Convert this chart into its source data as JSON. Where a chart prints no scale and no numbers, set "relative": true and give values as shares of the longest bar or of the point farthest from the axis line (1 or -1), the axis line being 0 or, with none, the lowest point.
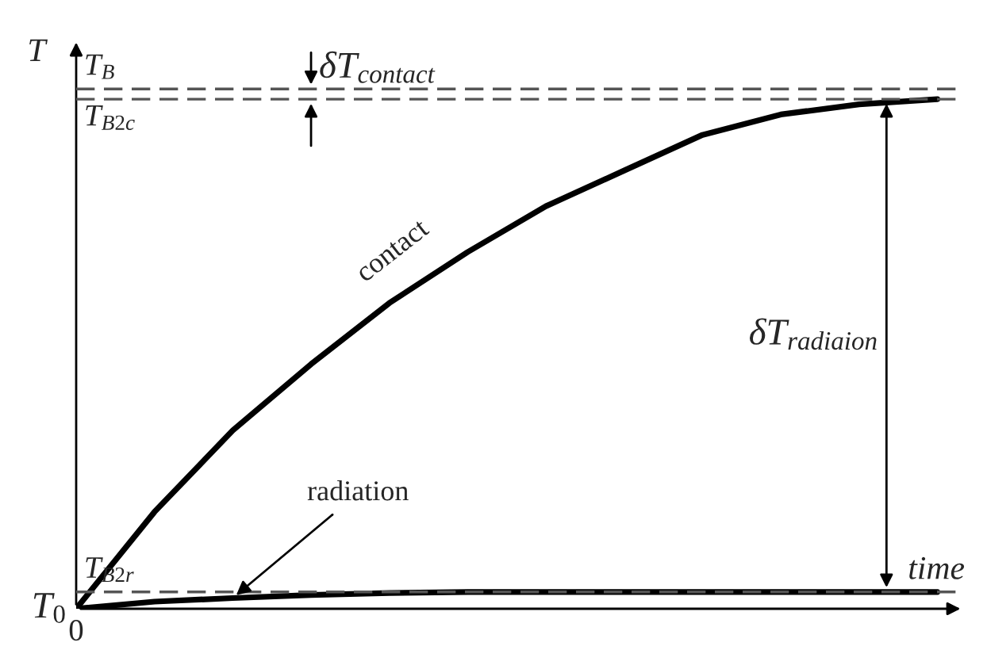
{
  "chart_data": {
    "type": "line",
    "relative": true,
    "xlabel": "time",
    "ylabel": "T",
    "categories": [
      null,
      null,
      null,
      null,
      null,
      null,
      null,
      null,
      null,
      null,
      null,
      null
    ],
    "series": [
      {
        "name": "contact",
        "color": "#000000",
        "values": [
          0,
          0.19,
          0.35,
          0.48,
          0.6,
          0.7,
          0.79,
          0.86,
          0.93,
          0.97,
          0.99,
          1
        ]
      },
      {
        "name": "radiation",
        "color": "#000000",
        "values": [
          0,
          0.014,
          0.021,
          0.027,
          0.031,
          0.033,
          0.033,
          0.033,
          0.033,
          0.033,
          0.033,
          0.033
        ]
      }
    ],
    "ref_lines": [
      {
        "axis": "y",
        "value": 1.02,
        "label": "T$_{B}$",
        "color": "#555555",
        "line_style": "dashed"
      },
      {
        "axis": "y",
        "value": 1.0,
        "label": "T$_{B2c}$",
        "color": "#555555",
        "line_style": "dashed"
      },
      {
        "axis": "y",
        "value": 0.033,
        "label": "T$_{B2r}$",
        "color": "#555555",
        "line_style": "dashed"
      }
    ],
    "annotations": [
      "δT$_{contact}$",
      "δT$_{radiaion}$",
      "T$_{0}$",
      "0"
    ],
    "legend": false,
    "marker": "none",
    "line_style": "solid"
  }
}
